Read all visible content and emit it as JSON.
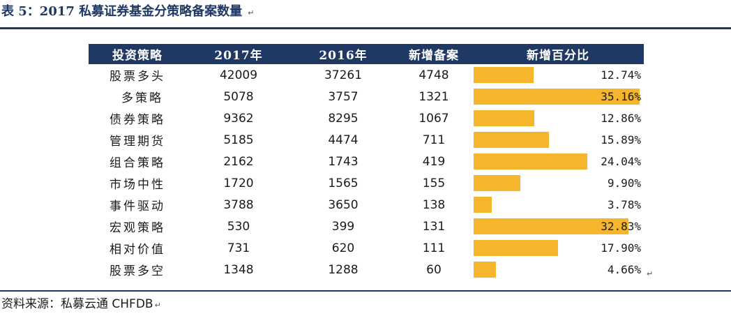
{
  "title": "表 5：2017 私募证券基金分策略备案数量",
  "return_mark": "↵",
  "headers": [
    "投资策略",
    "2017年",
    "2016年",
    "新增备案",
    "新增百分比"
  ],
  "rows": [
    {
      "name": "股票多头",
      "y2017": "42009",
      "y2016": "37261",
      "added": "4748",
      "pct": "12.74%",
      "fraction": 0.1274
    },
    {
      "name": "多策略",
      "y2017": "5078",
      "y2016": "3757",
      "added": "1321",
      "pct": "35.16%",
      "fraction": 0.3516
    },
    {
      "name": "债券策略",
      "y2017": "9362",
      "y2016": "8295",
      "added": "1067",
      "pct": "12.86%",
      "fraction": 0.1286
    },
    {
      "name": "管理期货",
      "y2017": "5185",
      "y2016": "4474",
      "added": "711",
      "pct": "15.89%",
      "fraction": 0.1589
    },
    {
      "name": "组合策略",
      "y2017": "2162",
      "y2016": "1743",
      "added": "419",
      "pct": "24.04%",
      "fraction": 0.2404
    },
    {
      "name": "市场中性",
      "y2017": "1720",
      "y2016": "1565",
      "added": "155",
      "pct": "9.90%",
      "fraction": 0.099
    },
    {
      "name": "事件驱动",
      "y2017": "3788",
      "y2016": "3650",
      "added": "138",
      "pct": "3.78%",
      "fraction": 0.0378
    },
    {
      "name": "宏观策略",
      "y2017": "530",
      "y2016": "399",
      "added": "131",
      "pct": "32.83%",
      "fraction": 0.3283
    },
    {
      "name": "相对价值",
      "y2017": "731",
      "y2016": "620",
      "added": "111",
      "pct": "17.90%",
      "fraction": 0.179
    },
    {
      "name": "股票多空",
      "y2017": "1348",
      "y2016": "1288",
      "added": "60",
      "pct": "4.66%",
      "fraction": 0.0466
    }
  ],
  "colors": {
    "header_bg": "#1f3864",
    "bar": "#f5b52c",
    "rule": "#1f3864"
  },
  "source": "资料来源：私募云通 CHFDB"
}
